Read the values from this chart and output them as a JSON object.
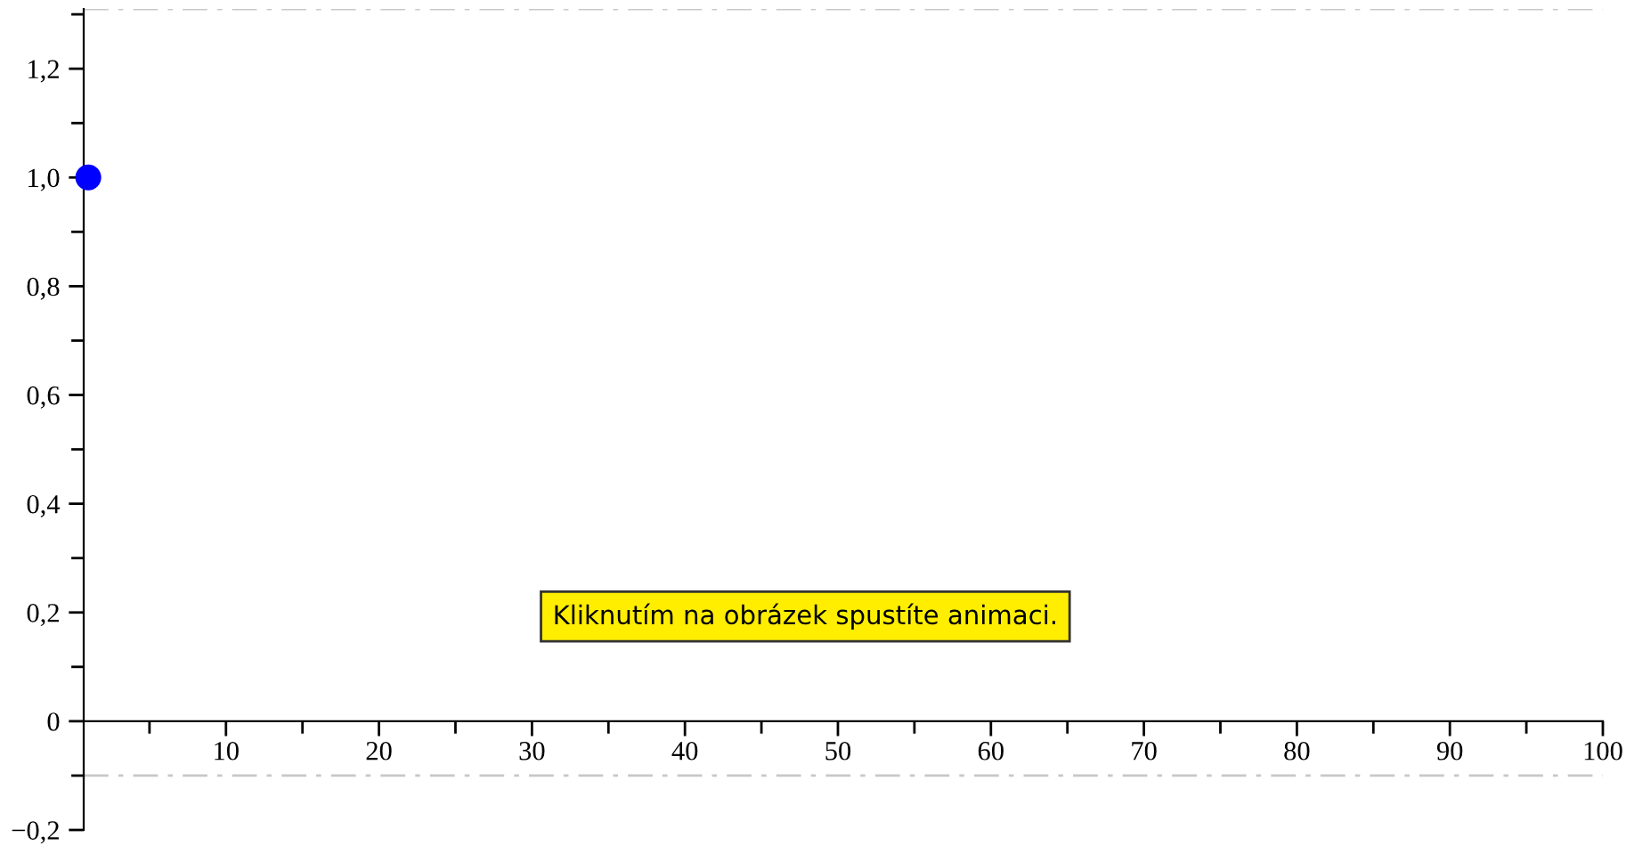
{
  "chart_data": {
    "type": "scatter",
    "x": [
      1
    ],
    "values": [
      1.0
    ],
    "color": "#0000ff",
    "marker": "circle",
    "xlim": [
      0.7,
      100
    ],
    "xticks": [
      10,
      20,
      30,
      40,
      50,
      60,
      70,
      80,
      90,
      100
    ],
    "ylim": [
      -0.2,
      1.31
    ],
    "yticks": [
      {
        "value": -0.2,
        "label": "−0,2"
      },
      0,
      {
        "value": 0.2,
        "label": "0,2"
      },
      {
        "value": 0.4,
        "label": "0,4"
      },
      {
        "value": 0.6,
        "label": "0,6"
      },
      {
        "value": 0.8,
        "label": "0,8"
      },
      {
        "value": 1.0,
        "label": "1,0"
      },
      {
        "value": 1.2,
        "label": "1,2"
      }
    ],
    "ref_lines": [
      {
        "axis": "y",
        "value": 1.31,
        "color": "#c8c8c8",
        "line_style": "dashdot"
      },
      {
        "axis": "y",
        "value": -0.1,
        "color": "#c8c8c8",
        "line_style": "dashdot"
      }
    ],
    "annotations": [
      "Kliknutím na obrázek spustíte animaci."
    ],
    "grid": false,
    "legend": false
  }
}
